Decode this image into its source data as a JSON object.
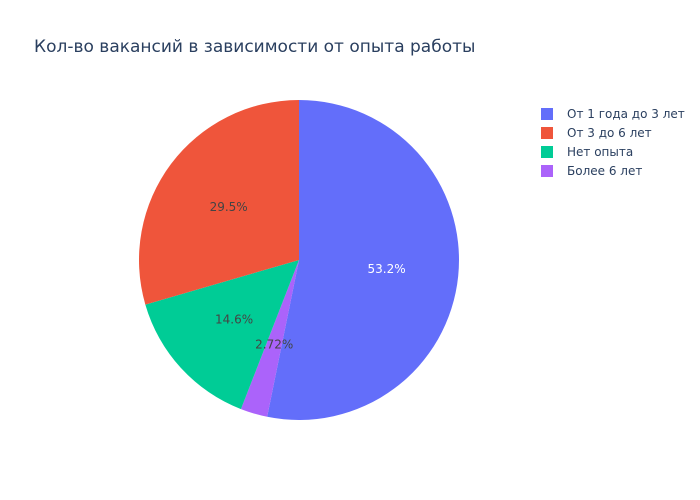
{
  "chart_data": {
    "type": "pie",
    "title": "Кол-во вакансий в зависимости от опыта работы",
    "slices": [
      {
        "name": "От 1 года до 3 лет",
        "percent": 53.2,
        "label": "53.2%",
        "color": "#636efa",
        "label_color": "#ffffff"
      },
      {
        "name": "Более 6 лет",
        "percent": 2.72,
        "label": "2.72%",
        "color": "#ab63fa",
        "label_color": "#444444"
      },
      {
        "name": "Нет опыта",
        "percent": 14.6,
        "label": "14.6%",
        "color": "#00cc96",
        "label_color": "#444444"
      },
      {
        "name": "От 3 до 6 лет",
        "percent": 29.5,
        "label": "29.5%",
        "color": "#ef553b",
        "label_color": "#444444"
      }
    ],
    "legend": {
      "placement": "top-right",
      "entries": [
        {
          "name": "От 1 года до 3 лет",
          "color": "#636efa"
        },
        {
          "name": "От 3 до 6 лет",
          "color": "#ef553b"
        },
        {
          "name": "Нет опыта",
          "color": "#00cc96"
        },
        {
          "name": "Более 6 лет",
          "color": "#ab63fa"
        }
      ]
    }
  }
}
